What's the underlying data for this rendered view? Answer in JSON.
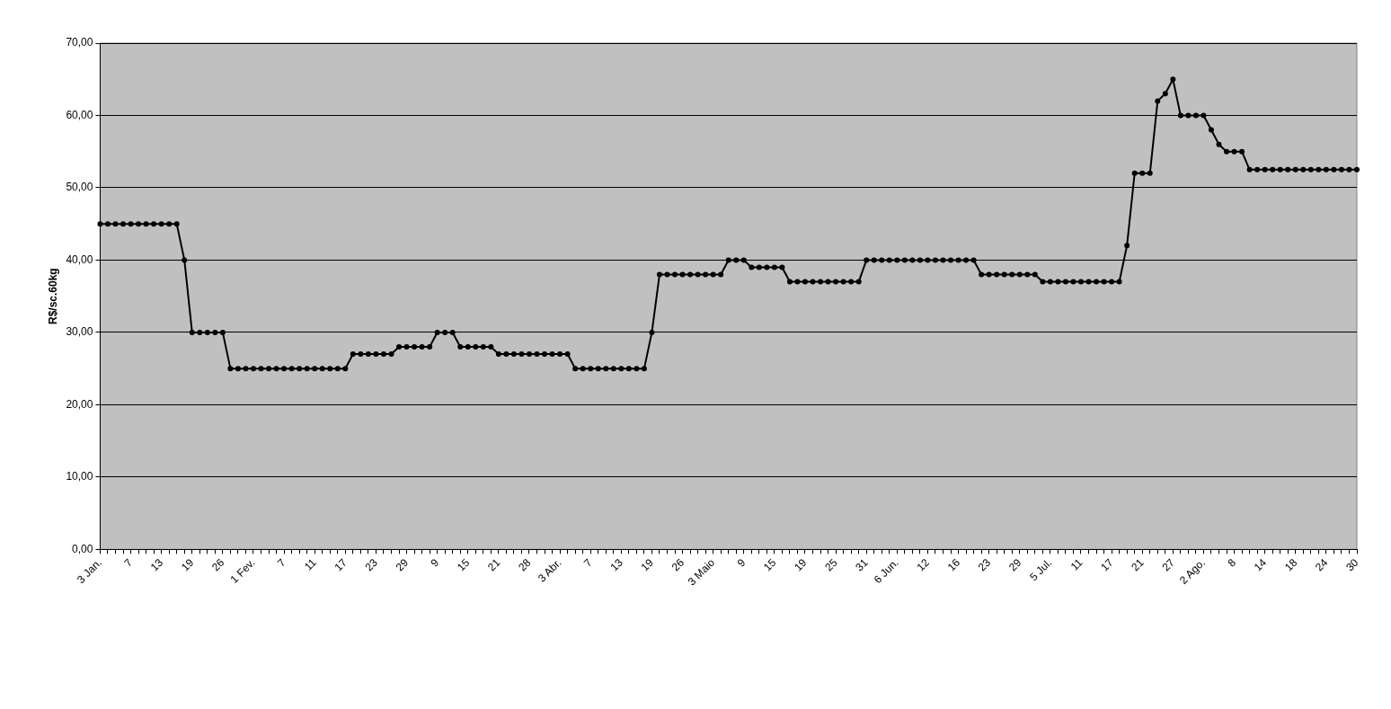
{
  "chart_data": {
    "type": "line",
    "ylabel": "R$/sc.60kg",
    "categories": [
      "3 Jan.",
      null,
      null,
      null,
      "7",
      null,
      null,
      null,
      "13",
      null,
      null,
      null,
      "19",
      null,
      null,
      null,
      "26",
      null,
      null,
      null,
      "1 Fev.",
      null,
      null,
      null,
      "7",
      null,
      null,
      null,
      "11",
      null,
      null,
      null,
      "17",
      null,
      null,
      null,
      "23",
      null,
      null,
      null,
      "29",
      null,
      null,
      null,
      "9",
      null,
      null,
      null,
      "15",
      null,
      null,
      null,
      "21",
      null,
      null,
      null,
      "28",
      null,
      null,
      null,
      "3 Abr.",
      null,
      null,
      null,
      "7",
      null,
      null,
      null,
      "13",
      null,
      null,
      null,
      "19",
      null,
      null,
      null,
      "26",
      null,
      null,
      null,
      "3 Maio",
      null,
      null,
      null,
      "9",
      null,
      null,
      null,
      "15",
      null,
      null,
      null,
      "19",
      null,
      null,
      null,
      "25",
      null,
      null,
      null,
      "31",
      null,
      null,
      null,
      "6 Jun.",
      null,
      null,
      null,
      "12",
      null,
      null,
      null,
      "16",
      null,
      null,
      null,
      "23",
      null,
      null,
      null,
      "29",
      null,
      null,
      null,
      "5 Jul.",
      null,
      null,
      null,
      "11",
      null,
      null,
      null,
      "17",
      null,
      null,
      null,
      "21",
      null,
      null,
      null,
      "27",
      null,
      null,
      null,
      "2 Ago.",
      null,
      null,
      null,
      "8",
      null,
      null,
      null,
      "14",
      null,
      null,
      null,
      "18",
      null,
      null,
      null,
      "24",
      null,
      null,
      null,
      "30"
    ],
    "series": [
      {
        "color": "#000000",
        "values": [
          45,
          45,
          45,
          45,
          45,
          45,
          45,
          45,
          45,
          45,
          45,
          40,
          30,
          30,
          30,
          30,
          30,
          25,
          25,
          25,
          25,
          25,
          25,
          25,
          25,
          25,
          25,
          25,
          25,
          25,
          25,
          25,
          25,
          27,
          27,
          27,
          27,
          27,
          27,
          28,
          28,
          28,
          28,
          28,
          30,
          30,
          30,
          28,
          28,
          28,
          28,
          28,
          27,
          27,
          27,
          27,
          27,
          27,
          27,
          27,
          27,
          27,
          25,
          25,
          25,
          25,
          25,
          25,
          25,
          25,
          25,
          25,
          30,
          38,
          38,
          38,
          38,
          38,
          38,
          38,
          38,
          38,
          40,
          40,
          40,
          39,
          39,
          39,
          39,
          39,
          37,
          37,
          37,
          37,
          37,
          37,
          37,
          37,
          37,
          37,
          40,
          40,
          40,
          40,
          40,
          40,
          40,
          40,
          40,
          40,
          40,
          40,
          40,
          40,
          40,
          38,
          38,
          38,
          38,
          38,
          38,
          38,
          38,
          37,
          37,
          37,
          37,
          37,
          37,
          37,
          37,
          37,
          37,
          37,
          42,
          52,
          52,
          52,
          62,
          63,
          65,
          60,
          60,
          60,
          60,
          58,
          56,
          55,
          55,
          55,
          52.5,
          52.5,
          52.5,
          52.5,
          52.5,
          52.5,
          52.5,
          52.5,
          52.5,
          52.5,
          52.5,
          52.5,
          52.5,
          52.5,
          52.5
        ]
      }
    ],
    "ylim": [
      0,
      70
    ],
    "yticks": [
      {
        "value": 0,
        "label": "0,00"
      },
      {
        "value": 10,
        "label": "10,00"
      },
      {
        "value": 20,
        "label": "20,00"
      },
      {
        "value": 30,
        "label": "30,00"
      },
      {
        "value": 40,
        "label": "40,00"
      },
      {
        "value": 50,
        "label": "50,00"
      },
      {
        "value": 60,
        "label": "60,00"
      },
      {
        "value": 70,
        "label": "70,00"
      }
    ],
    "grid": "y",
    "legend": false,
    "marker": "circle",
    "line_style": "solid"
  }
}
